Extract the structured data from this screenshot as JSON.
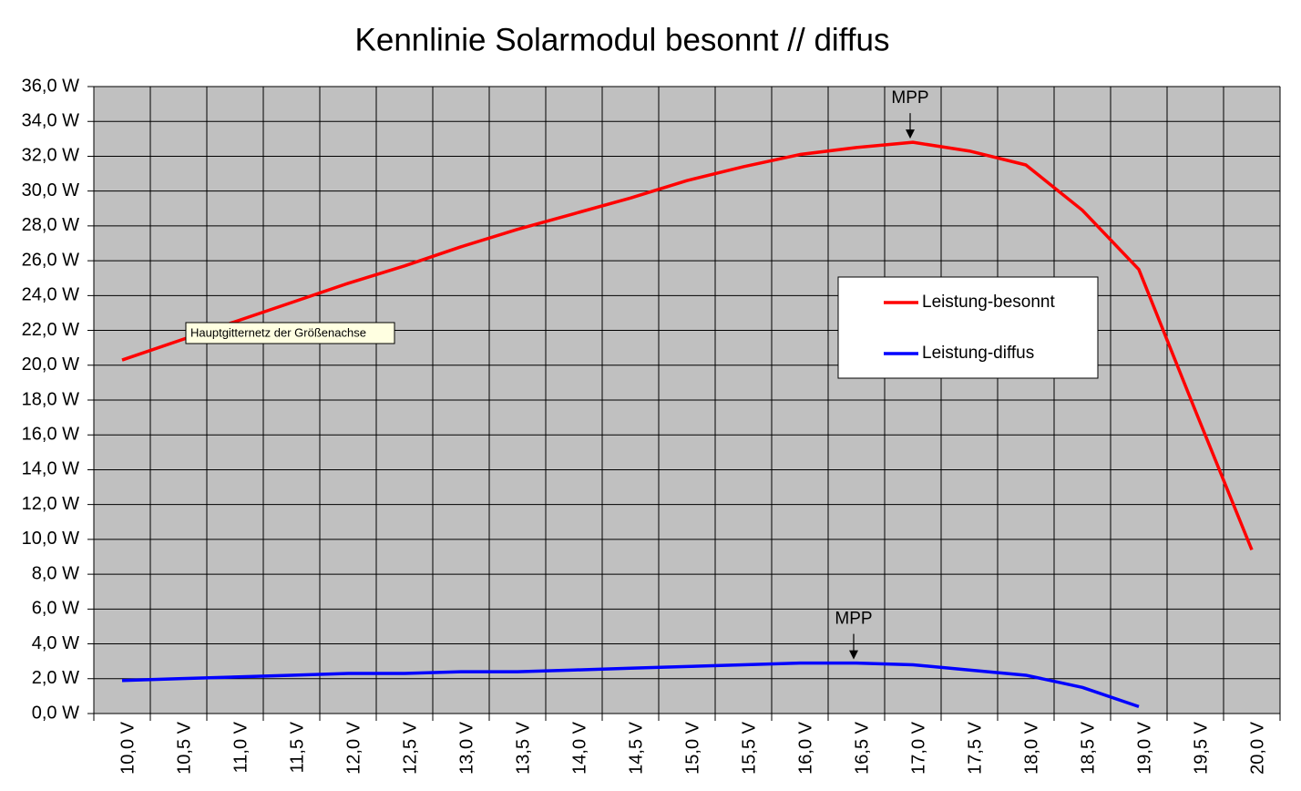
{
  "chart_data": {
    "type": "line",
    "title": "Kennlinie Solarmodul besonnt // diffus",
    "categories": [
      "10,0 V",
      "10,5 V",
      "11,0 V",
      "11,5 V",
      "12,0 V",
      "12,5 V",
      "13,0 V",
      "13,5 V",
      "14,0 V",
      "14,5 V",
      "15,0 V",
      "15,5 V",
      "16,0 V",
      "16,5 V",
      "17,0 V",
      "17,5 V",
      "18,0 V",
      "18,5 V",
      "19,0 V",
      "19,5 V",
      "20,0 V"
    ],
    "series": [
      {
        "name": "Leistung-besonnt",
        "color": "#ff0000",
        "values": [
          20.3,
          21.4,
          22.5,
          23.6,
          24.7,
          25.7,
          26.8,
          27.8,
          28.7,
          29.6,
          30.6,
          31.4,
          32.1,
          32.5,
          32.8,
          32.3,
          31.5,
          28.9,
          25.5,
          17.4,
          9.4
        ]
      },
      {
        "name": "Leistung-diffus",
        "color": "#0000ff",
        "values": [
          1.9,
          2.0,
          2.1,
          2.2,
          2.3,
          2.3,
          2.4,
          2.4,
          2.5,
          2.6,
          2.7,
          2.8,
          2.9,
          2.9,
          2.8,
          2.5,
          2.2,
          1.5,
          0.4,
          null,
          null
        ]
      }
    ],
    "ylim": [
      0,
      36
    ],
    "yticks": [
      {
        "value": 0,
        "label": "0,0 W"
      },
      {
        "value": 2,
        "label": "2,0 W"
      },
      {
        "value": 4,
        "label": "4,0 W"
      },
      {
        "value": 6,
        "label": "6,0 W"
      },
      {
        "value": 8,
        "label": "8,0 W"
      },
      {
        "value": 10,
        "label": "10,0 W"
      },
      {
        "value": 12,
        "label": "12,0 W"
      },
      {
        "value": 14,
        "label": "14,0 W"
      },
      {
        "value": 16,
        "label": "16,0 W"
      },
      {
        "value": 18,
        "label": "18,0 W"
      },
      {
        "value": 20,
        "label": "20,0 W"
      },
      {
        "value": 22,
        "label": "22,0 W"
      },
      {
        "value": 24,
        "label": "24,0 W"
      },
      {
        "value": 26,
        "label": "26,0 W"
      },
      {
        "value": 28,
        "label": "28,0 W"
      },
      {
        "value": 30,
        "label": "30,0 W"
      },
      {
        "value": 32,
        "label": "32,0 W"
      },
      {
        "value": 34,
        "label": "34,0 W"
      },
      {
        "value": 36,
        "label": "36,0 W"
      }
    ],
    "grid": true,
    "legend": "right",
    "annotations": [
      "MPP",
      "MPP"
    ],
    "tooltip": "Hauptgitternetz der Größenachse"
  }
}
